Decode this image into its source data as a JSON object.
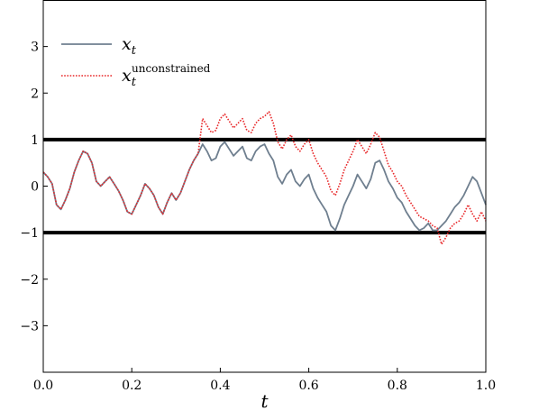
{
  "chart_data": {
    "type": "line",
    "xlabel": "t",
    "xlim": [
      0.0,
      1.0
    ],
    "ylim": [
      -4.0,
      4.0
    ],
    "xticks": [
      "0.0",
      "0.2",
      "0.4",
      "0.6",
      "0.8",
      "1.0"
    ],
    "yticks": [
      "3",
      "2",
      "1",
      "0",
      "−1",
      "−2",
      "−3"
    ],
    "grid": false,
    "legend_position": "top-left",
    "hlines": [
      1,
      -1
    ],
    "series": [
      {
        "name": "x_t",
        "name_base": "x",
        "name_sub": "t",
        "name_sup": "",
        "style": "solid",
        "color": "#6f7f8f",
        "x": [
          0.0,
          0.01,
          0.02,
          0.03,
          0.04,
          0.05,
          0.06,
          0.07,
          0.08,
          0.09,
          0.1,
          0.11,
          0.12,
          0.13,
          0.14,
          0.15,
          0.16,
          0.17,
          0.18,
          0.19,
          0.2,
          0.21,
          0.22,
          0.23,
          0.24,
          0.25,
          0.26,
          0.27,
          0.28,
          0.29,
          0.3,
          0.31,
          0.32,
          0.33,
          0.34,
          0.35,
          0.36,
          0.37,
          0.38,
          0.39,
          0.4,
          0.41,
          0.42,
          0.43,
          0.44,
          0.45,
          0.46,
          0.47,
          0.48,
          0.49,
          0.5,
          0.51,
          0.52,
          0.53,
          0.54,
          0.55,
          0.56,
          0.57,
          0.58,
          0.59,
          0.6,
          0.61,
          0.62,
          0.63,
          0.64,
          0.65,
          0.66,
          0.67,
          0.68,
          0.69,
          0.7,
          0.71,
          0.72,
          0.73,
          0.74,
          0.75,
          0.76,
          0.77,
          0.78,
          0.79,
          0.8,
          0.81,
          0.82,
          0.83,
          0.84,
          0.85,
          0.86,
          0.87,
          0.88,
          0.89,
          0.9,
          0.91,
          0.92,
          0.93,
          0.94,
          0.95,
          0.96,
          0.97,
          0.98,
          0.99,
          1.0
        ],
        "y": [
          0.3,
          0.2,
          0.05,
          -0.4,
          -0.5,
          -0.3,
          -0.05,
          0.3,
          0.55,
          0.75,
          0.7,
          0.5,
          0.1,
          0.0,
          0.1,
          0.2,
          0.05,
          -0.1,
          -0.3,
          -0.55,
          -0.6,
          -0.4,
          -0.2,
          0.05,
          -0.05,
          -0.2,
          -0.45,
          -0.6,
          -0.35,
          -0.15,
          -0.3,
          -0.15,
          0.1,
          0.35,
          0.55,
          0.7,
          0.9,
          0.75,
          0.55,
          0.6,
          0.85,
          0.95,
          0.8,
          0.65,
          0.75,
          0.85,
          0.6,
          0.55,
          0.75,
          0.85,
          0.9,
          0.7,
          0.55,
          0.2,
          0.05,
          0.25,
          0.35,
          0.1,
          0.0,
          0.15,
          0.25,
          -0.05,
          -0.25,
          -0.4,
          -0.55,
          -0.85,
          -0.95,
          -0.7,
          -0.4,
          -0.2,
          0.0,
          0.25,
          0.1,
          -0.05,
          0.15,
          0.5,
          0.55,
          0.35,
          0.1,
          -0.05,
          -0.25,
          -0.35,
          -0.55,
          -0.7,
          -0.85,
          -0.95,
          -0.9,
          -0.8,
          -0.95,
          -0.95,
          -0.85,
          -0.75,
          -0.6,
          -0.45,
          -0.35,
          -0.2,
          0.0,
          0.2,
          0.1,
          -0.15,
          -0.4
        ]
      },
      {
        "name": "x_t^unconstrained",
        "name_base": "x",
        "name_sub": "t",
        "name_sup": "unconstrained",
        "style": "dotted",
        "color": "#e8282a",
        "x": [
          0.0,
          0.01,
          0.02,
          0.03,
          0.04,
          0.05,
          0.06,
          0.07,
          0.08,
          0.09,
          0.1,
          0.11,
          0.12,
          0.13,
          0.14,
          0.15,
          0.16,
          0.17,
          0.18,
          0.19,
          0.2,
          0.21,
          0.22,
          0.23,
          0.24,
          0.25,
          0.26,
          0.27,
          0.28,
          0.29,
          0.3,
          0.31,
          0.32,
          0.33,
          0.34,
          0.35,
          0.36,
          0.37,
          0.38,
          0.39,
          0.4,
          0.41,
          0.42,
          0.43,
          0.44,
          0.45,
          0.46,
          0.47,
          0.48,
          0.49,
          0.5,
          0.51,
          0.52,
          0.53,
          0.54,
          0.55,
          0.56,
          0.57,
          0.58,
          0.59,
          0.6,
          0.61,
          0.62,
          0.63,
          0.64,
          0.65,
          0.66,
          0.67,
          0.68,
          0.69,
          0.7,
          0.71,
          0.72,
          0.73,
          0.74,
          0.75,
          0.76,
          0.77,
          0.78,
          0.79,
          0.8,
          0.81,
          0.82,
          0.83,
          0.84,
          0.85,
          0.86,
          0.87,
          0.88,
          0.89,
          0.9,
          0.91,
          0.92,
          0.93,
          0.94,
          0.95,
          0.96,
          0.97,
          0.98,
          0.99,
          1.0
        ],
        "y": [
          0.3,
          0.2,
          0.05,
          -0.4,
          -0.5,
          -0.3,
          -0.05,
          0.3,
          0.55,
          0.75,
          0.7,
          0.5,
          0.1,
          0.0,
          0.1,
          0.2,
          0.05,
          -0.1,
          -0.3,
          -0.55,
          -0.6,
          -0.4,
          -0.2,
          0.05,
          -0.05,
          -0.2,
          -0.45,
          -0.6,
          -0.35,
          -0.15,
          -0.3,
          -0.15,
          0.1,
          0.35,
          0.55,
          0.7,
          1.45,
          1.3,
          1.15,
          1.2,
          1.45,
          1.55,
          1.4,
          1.25,
          1.35,
          1.45,
          1.2,
          1.15,
          1.35,
          1.45,
          1.5,
          1.6,
          1.35,
          0.95,
          0.8,
          1.0,
          1.1,
          0.85,
          0.75,
          0.9,
          1.0,
          0.7,
          0.5,
          0.35,
          0.2,
          -0.1,
          -0.2,
          0.05,
          0.35,
          0.55,
          0.75,
          1.0,
          0.85,
          0.7,
          0.9,
          1.15,
          1.05,
          0.75,
          0.45,
          0.3,
          0.1,
          0.0,
          -0.2,
          -0.35,
          -0.5,
          -0.65,
          -0.7,
          -0.75,
          -0.85,
          -0.9,
          -1.25,
          -1.1,
          -0.9,
          -0.8,
          -0.75,
          -0.6,
          -0.4,
          -0.6,
          -0.75,
          -0.55,
          -0.75
        ]
      }
    ]
  }
}
